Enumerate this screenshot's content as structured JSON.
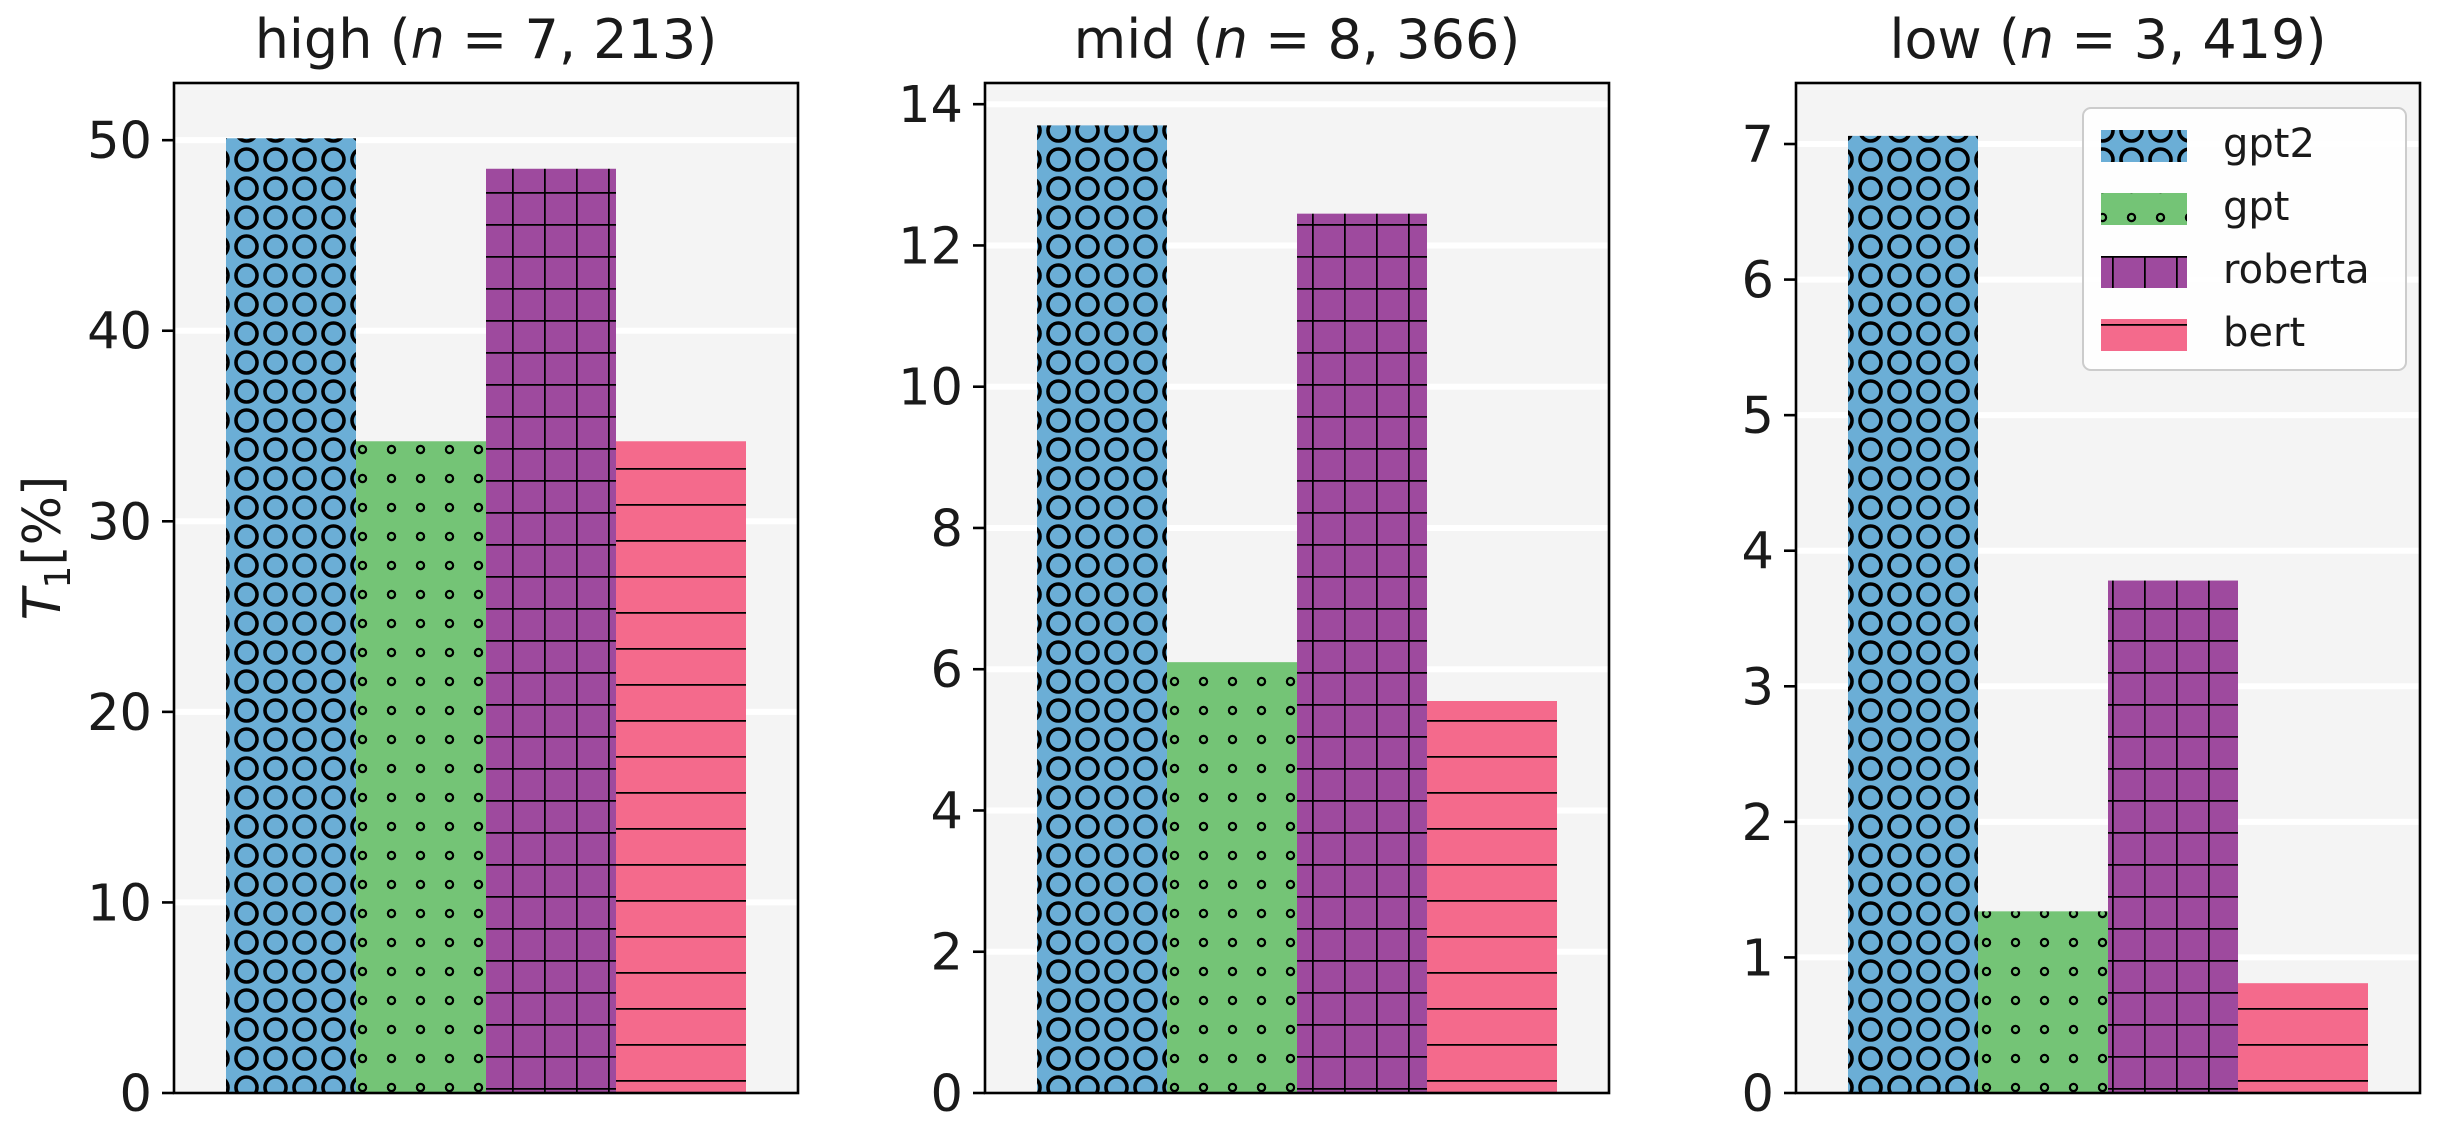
{
  "chart_data": [
    {
      "type": "bar",
      "title": "high (n = 7, 213)",
      "title_parts": {
        "prefix": "high (",
        "var": "n",
        "rest": " = 7, 213)"
      },
      "ylabel": "T₁[%]",
      "ylim": [
        0,
        53
      ],
      "yticks": [
        0,
        10,
        20,
        30,
        40,
        50
      ],
      "grid": true,
      "series": [
        {
          "name": "gpt2",
          "values": [
            50.1
          ]
        },
        {
          "name": "gpt",
          "values": [
            34.2
          ]
        },
        {
          "name": "roberta",
          "values": [
            48.5
          ]
        },
        {
          "name": "bert",
          "values": [
            34.2
          ]
        }
      ]
    },
    {
      "type": "bar",
      "title": "mid (n = 8, 366)",
      "title_parts": {
        "prefix": "mid (",
        "var": "n",
        "rest": " = 8, 366)"
      },
      "ylim": [
        0,
        14.3
      ],
      "yticks": [
        0,
        2,
        4,
        6,
        8,
        10,
        12,
        14
      ],
      "grid": true,
      "series": [
        {
          "name": "gpt2",
          "values": [
            13.7
          ]
        },
        {
          "name": "gpt",
          "values": [
            6.1
          ]
        },
        {
          "name": "roberta",
          "values": [
            12.45
          ]
        },
        {
          "name": "bert",
          "values": [
            5.55
          ]
        }
      ]
    },
    {
      "type": "bar",
      "title": "low (n = 3, 419)",
      "title_parts": {
        "prefix": "low (",
        "var": "n",
        "rest": " = 3, 419)"
      },
      "ylim": [
        0,
        7.45
      ],
      "yticks": [
        0,
        1,
        2,
        3,
        4,
        5,
        6,
        7
      ],
      "grid": true,
      "legend": "top-right",
      "series": [
        {
          "name": "gpt2",
          "values": [
            7.06
          ]
        },
        {
          "name": "gpt",
          "values": [
            1.34
          ]
        },
        {
          "name": "roberta",
          "values": [
            3.78
          ]
        },
        {
          "name": "bert",
          "values": [
            0.81
          ]
        }
      ]
    }
  ],
  "series_style": [
    {
      "name": "gpt2",
      "color": "#6baed6",
      "hatch": "circles"
    },
    {
      "name": "gpt",
      "color": "#74c476",
      "hatch": "dots"
    },
    {
      "name": "roberta",
      "color": "#9e4a9e",
      "hatch": "grid"
    },
    {
      "name": "bert",
      "color": "#f46a8c",
      "hatch": "hlines"
    }
  ]
}
